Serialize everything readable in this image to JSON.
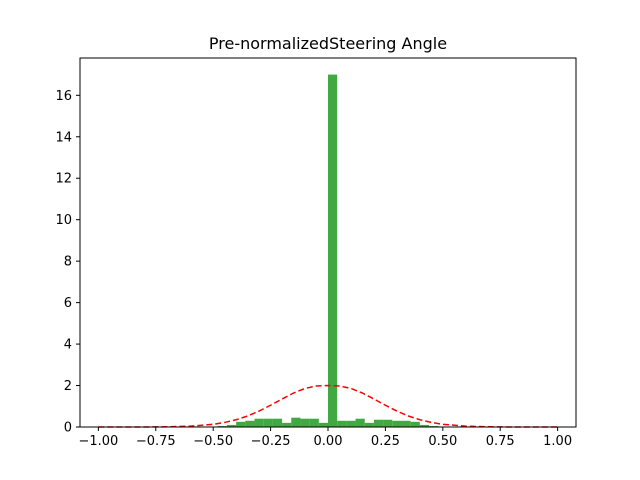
{
  "chart_data": {
    "type": "bar",
    "title": "Pre-normalizedSteering Angle",
    "xlabel": "",
    "ylabel": "",
    "xlim": [
      -1.08,
      1.08
    ],
    "ylim": [
      0,
      17.8
    ],
    "grid": false,
    "legend": "none",
    "bar_color": "#2ca02c",
    "bar_alpha": 0.9,
    "curve_color": "#ff0000",
    "xticks": [
      -1.0,
      -0.75,
      -0.5,
      -0.25,
      0.0,
      0.25,
      0.5,
      0.75,
      1.0
    ],
    "xtick_labels": [
      "−1.00",
      "−0.75",
      "−0.50",
      "−0.25",
      "0.00",
      "0.25",
      "0.50",
      "0.75",
      "1.00"
    ],
    "yticks": [
      0,
      2,
      4,
      6,
      8,
      10,
      12,
      14,
      16
    ],
    "ytick_labels": [
      "0",
      "2",
      "4",
      "6",
      "8",
      "10",
      "12",
      "14",
      "16"
    ],
    "histogram": {
      "bin_width": 0.04,
      "bins": [
        {
          "x0": -0.48,
          "value": 0.05
        },
        {
          "x0": -0.44,
          "value": 0.1
        },
        {
          "x0": -0.4,
          "value": 0.25
        },
        {
          "x0": -0.36,
          "value": 0.3
        },
        {
          "x0": -0.32,
          "value": 0.4
        },
        {
          "x0": -0.28,
          "value": 0.4
        },
        {
          "x0": -0.24,
          "value": 0.4
        },
        {
          "x0": -0.2,
          "value": 0.2
        },
        {
          "x0": -0.16,
          "value": 0.45
        },
        {
          "x0": -0.12,
          "value": 0.4
        },
        {
          "x0": -0.08,
          "value": 0.4
        },
        {
          "x0": -0.04,
          "value": 0.2
        },
        {
          "x0": 0.0,
          "value": 17.0
        },
        {
          "x0": 0.04,
          "value": 0.3
        },
        {
          "x0": 0.08,
          "value": 0.3
        },
        {
          "x0": 0.12,
          "value": 0.4
        },
        {
          "x0": 0.16,
          "value": 0.2
        },
        {
          "x0": 0.2,
          "value": 0.35
        },
        {
          "x0": 0.24,
          "value": 0.35
        },
        {
          "x0": 0.28,
          "value": 0.3
        },
        {
          "x0": 0.32,
          "value": 0.3
        },
        {
          "x0": 0.36,
          "value": 0.25
        },
        {
          "x0": 0.4,
          "value": 0.1
        },
        {
          "x0": 0.44,
          "value": 0.05
        }
      ]
    },
    "curve": {
      "style": "dashed",
      "x": [
        -1.0,
        -0.9,
        -0.8,
        -0.7,
        -0.6,
        -0.5,
        -0.45,
        -0.4,
        -0.35,
        -0.3,
        -0.25,
        -0.2,
        -0.15,
        -0.1,
        -0.05,
        0.0,
        0.05,
        0.1,
        0.15,
        0.2,
        0.25,
        0.3,
        0.35,
        0.4,
        0.45,
        0.5,
        0.6,
        0.7,
        0.8,
        0.9,
        1.0
      ],
      "y": [
        0.0,
        0.0,
        0.0,
        0.01,
        0.04,
        0.13,
        0.22,
        0.35,
        0.53,
        0.77,
        1.05,
        1.35,
        1.64,
        1.86,
        1.98,
        2.0,
        1.98,
        1.86,
        1.64,
        1.35,
        1.05,
        0.77,
        0.53,
        0.35,
        0.22,
        0.13,
        0.04,
        0.01,
        0.0,
        0.0,
        0.0
      ]
    }
  }
}
